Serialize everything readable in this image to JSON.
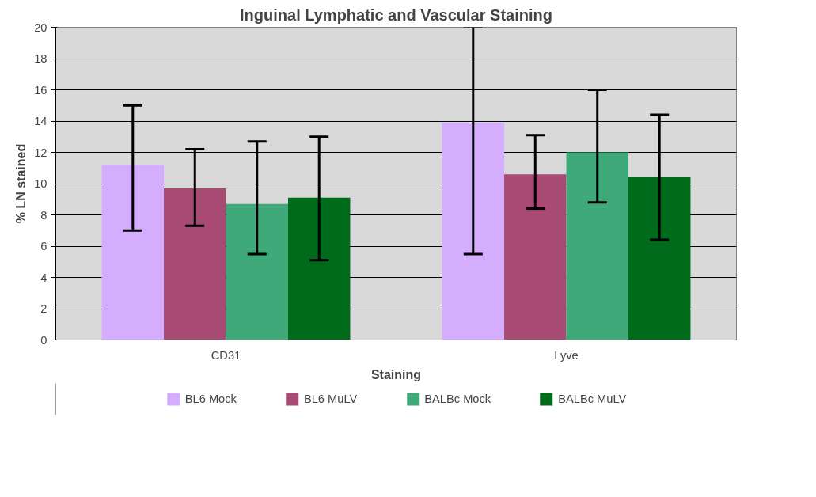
{
  "chart_data": {
    "type": "bar",
    "title": "Inguinal Lymphatic and Vascular Staining",
    "xlabel": "Staining",
    "ylabel": "% LN stained",
    "categories": [
      "CD31",
      "Lyve"
    ],
    "series": [
      {
        "name": "BL6 Mock",
        "color": "#d5adff",
        "values": [
          11.2,
          13.9
        ],
        "errors": [
          [
            7.0,
            15.0
          ],
          [
            5.5,
            20.0
          ]
        ]
      },
      {
        "name": "BL6 MuLV",
        "color": "#a84a74",
        "values": [
          9.7,
          10.6
        ],
        "errors": [
          [
            7.3,
            12.2
          ],
          [
            8.4,
            13.1
          ]
        ]
      },
      {
        "name": "BALBc Mock",
        "color": "#3fa97a",
        "values": [
          8.7,
          12.0
        ],
        "errors": [
          [
            5.5,
            12.7
          ],
          [
            8.8,
            16.0
          ]
        ]
      },
      {
        "name": "BALBc MuLV",
        "color": "#006b1a",
        "values": [
          9.1,
          10.4
        ],
        "errors": [
          [
            5.1,
            13.0
          ],
          [
            6.4,
            14.4
          ]
        ]
      }
    ],
    "ylim": [
      0,
      20
    ],
    "yticks": [
      0,
      2,
      4,
      6,
      8,
      10,
      12,
      14,
      16,
      18,
      20
    ],
    "grid": "y",
    "legend": "bottom"
  }
}
